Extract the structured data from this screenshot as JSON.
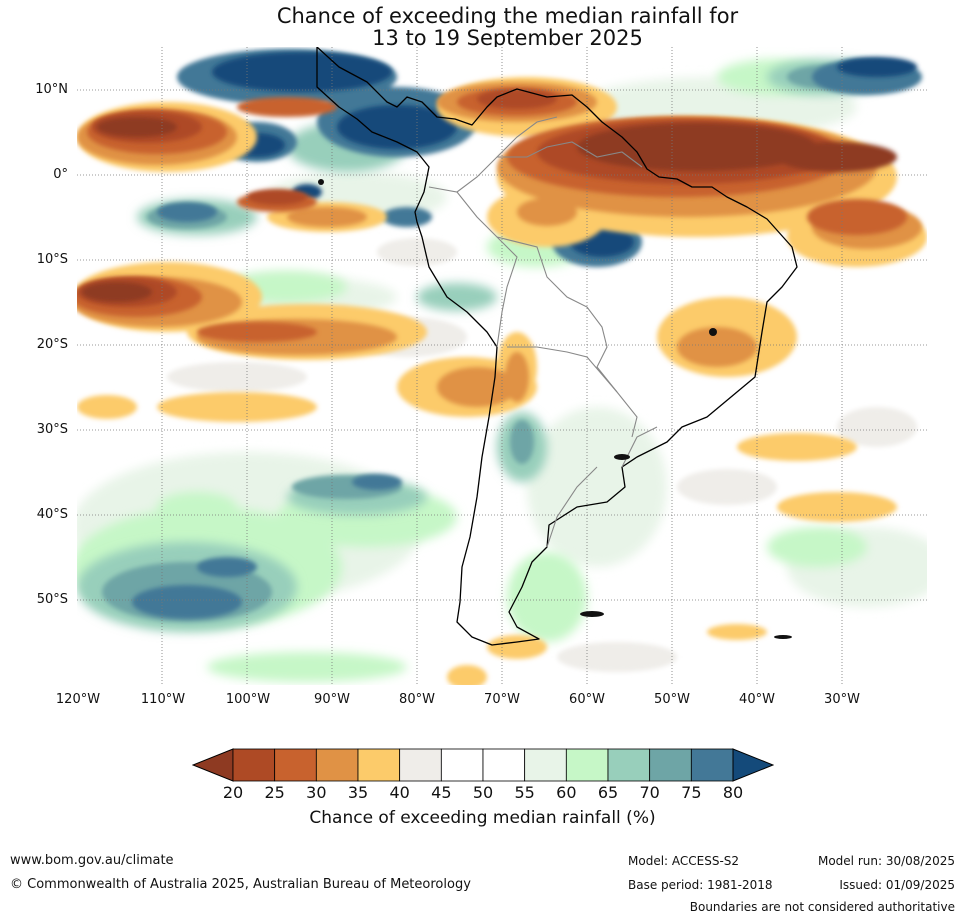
{
  "title": {
    "line1": "Chance of exceeding the median rainfall for",
    "line2": "13 to 19 September 2025"
  },
  "map": {
    "latitude_labels": [
      "10°N",
      "0°",
      "10°S",
      "20°S",
      "30°S",
      "40°S",
      "50°S"
    ],
    "longitude_labels": [
      "120°W",
      "110°W",
      "100°W",
      "90°W",
      "80°W",
      "70°W",
      "60°W",
      "50°W",
      "40°W",
      "30°W"
    ]
  },
  "colorbar": {
    "ticks": [
      "20",
      "25",
      "30",
      "35",
      "40",
      "45",
      "50",
      "55",
      "60",
      "65",
      "70",
      "75",
      "80"
    ],
    "colors": [
      "#8e3a22",
      "#ae4a25",
      "#c8622e",
      "#e09245",
      "#fccb6a",
      "#efede9",
      "#ffffff",
      "#ffffff",
      "#e8f4e8",
      "#c6f7c7",
      "#98cfbb",
      "#6ea5a6",
      "#437897",
      "#144a7a"
    ],
    "label": "Chance of exceeding median rainfall (%)"
  },
  "footer": {
    "website": "www.bom.gov.au/climate",
    "copyright": "© Commonwealth of Australia 2025, Australian Bureau of Meteorology",
    "model": "Model: ACCESS-S2",
    "base_period": "Base period: 1981-2018",
    "model_run": "Model run: 30/08/2025",
    "issued": "Issued: 01/09/2025",
    "boundaries": "Boundaries are not considered authoritative"
  }
}
